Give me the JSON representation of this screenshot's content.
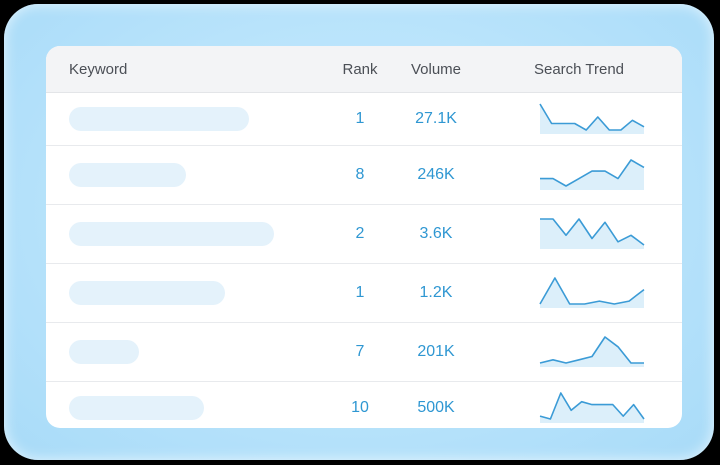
{
  "table": {
    "headers": {
      "keyword": "Keyword",
      "rank": "Rank",
      "volume": "Volume",
      "trend": "Search Trend"
    },
    "rows": [
      {
        "rank": "1",
        "volume": "27.1K",
        "keyword_bar_fraction": 0.88,
        "trend": [
          9,
          3,
          3,
          3,
          1,
          5,
          1,
          1,
          4,
          2
        ]
      },
      {
        "rank": "8",
        "volume": "246K",
        "keyword_bar_fraction": 0.57,
        "trend": [
          5,
          5,
          3,
          5,
          7,
          7,
          5,
          10,
          8
        ]
      },
      {
        "rank": "2",
        "volume": "3.6K",
        "keyword_bar_fraction": 1.0,
        "trend": [
          9,
          9,
          4,
          9,
          3,
          8,
          2,
          4,
          1
        ]
      },
      {
        "rank": "1",
        "volume": "1.2K",
        "keyword_bar_fraction": 0.76,
        "trend": [
          1,
          10,
          1,
          1,
          2,
          1,
          2,
          6
        ]
      },
      {
        "rank": "7",
        "volume": "201K",
        "keyword_bar_fraction": 0.34,
        "trend": [
          1,
          2,
          1,
          2,
          3,
          9,
          6,
          1,
          1
        ]
      },
      {
        "rank": "10",
        "volume": "500K",
        "keyword_bar_fraction": 0.66,
        "trend": [
          2,
          1,
          10,
          4,
          7,
          6,
          6,
          6,
          2,
          6,
          1
        ]
      }
    ]
  },
  "colors": {
    "accent": "#2f97d2",
    "trend_line": "#3b9bd6",
    "trend_fill": "#dceffa",
    "keyword_placeholder": "#e4f2fb"
  }
}
